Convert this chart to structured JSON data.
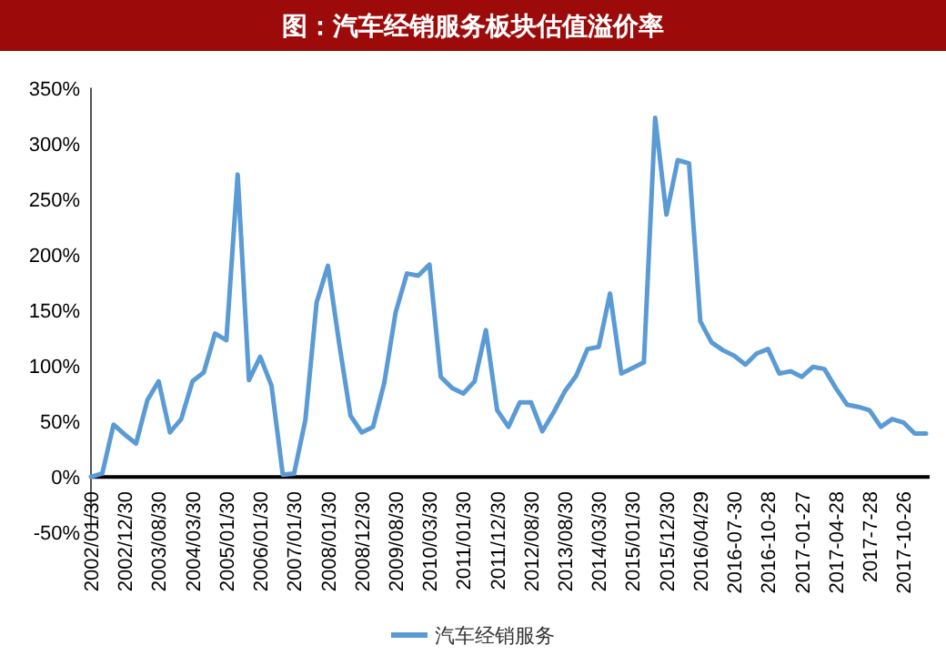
{
  "chart_data": {
    "type": "line",
    "title": "图：汽车经销服务板块估值溢价率",
    "categories": [
      "2002/01/30",
      null,
      null,
      "2002/12/30",
      null,
      null,
      "2003/08/30",
      null,
      null,
      "2004/03/30",
      null,
      null,
      "2005/01/30",
      null,
      null,
      "2006/01/30",
      null,
      null,
      "2007/01/30",
      null,
      null,
      "2008/01/30",
      null,
      null,
      "2008/12/30",
      null,
      null,
      "2009/08/30",
      null,
      null,
      "2010/03/30",
      null,
      null,
      "2011/01/30",
      null,
      null,
      "2011/12/30",
      null,
      null,
      "2012/08/30",
      null,
      null,
      "2013/08/30",
      null,
      null,
      "2014/03/30",
      null,
      null,
      "2015/01/30",
      null,
      null,
      "2015/12/30",
      null,
      null,
      "2016/04/29",
      null,
      null,
      "2016-07-30",
      null,
      null,
      "2016-10-28",
      null,
      null,
      "2017-01-27",
      null,
      null,
      "2017-04-28",
      null,
      null,
      "2017-7-28",
      null,
      null,
      "2017-10-26",
      null,
      null
    ],
    "series": [
      {
        "name": "汽车经销服务",
        "color": "#5b9bd5",
        "values": [
          0,
          3,
          47,
          38,
          30,
          69,
          86,
          40,
          52,
          86,
          94,
          129,
          123,
          272,
          87,
          108,
          82,
          2,
          3,
          51,
          157,
          190,
          120,
          55,
          40,
          45,
          85,
          148,
          183,
          181,
          191,
          90,
          80,
          75,
          86,
          132,
          60,
          45,
          67,
          67,
          41,
          58,
          77,
          91,
          115,
          117,
          165,
          93,
          98,
          103,
          323,
          236,
          285,
          282,
          140,
          121,
          114,
          109,
          101,
          111,
          115,
          93,
          95,
          90,
          99,
          97,
          80,
          65,
          63,
          60,
          45,
          52,
          49,
          39,
          39
        ]
      }
    ],
    "ylim": [
      -50,
      350
    ],
    "yticks": [
      {
        "value": -50,
        "label": "-50%"
      },
      {
        "value": 0,
        "label": "0%"
      },
      {
        "value": 50,
        "label": "50%"
      },
      {
        "value": 100,
        "label": "100%"
      },
      {
        "value": 150,
        "label": "150%"
      },
      {
        "value": 200,
        "label": "200%"
      },
      {
        "value": 250,
        "label": "250%"
      },
      {
        "value": 300,
        "label": "300%"
      },
      {
        "value": 350,
        "label": "350%"
      }
    ],
    "legend": "bottom"
  }
}
